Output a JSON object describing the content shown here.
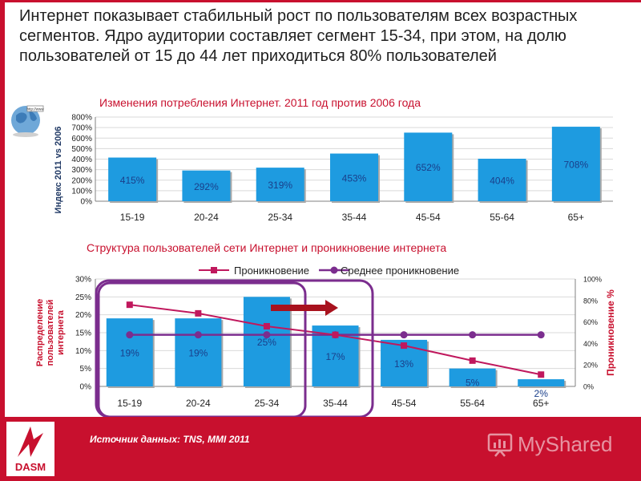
{
  "slide": {
    "title": "Интернет показывает стабильный рост по пользователям всех возрастных сегментов. Ядро аудитории составляет сегмент 15-34, при этом, на долю пользователей от 15 до 44 лет приходиться 80% пользователей",
    "source": "Источник данных: TNS,  MMI 2011",
    "logo_text": "DASM",
    "watermark": "MyShared"
  },
  "colors": {
    "accent": "#c8102e",
    "bar": "#1e9be0",
    "bar_label": "#1a3f8a",
    "penetration": "#c0185d",
    "avg_penetration": "#7b2d8e",
    "highlight_box": "#7b2d8e",
    "arrow": "#a8121e"
  },
  "chart_data": [
    {
      "type": "bar",
      "title": "Изменения потребления Интернет. 2011 год против 2006 года",
      "ylabel": "Индекс 2011 vs 2006",
      "categories": [
        "15-19",
        "20-24",
        "25-34",
        "35-44",
        "45-54",
        "55-64",
        "65+"
      ],
      "values": [
        415,
        292,
        319,
        453,
        652,
        404,
        708
      ],
      "value_labels": [
        "415%",
        "292%",
        "319%",
        "453%",
        "652%",
        "404%",
        "708%"
      ],
      "ylim": [
        0,
        800
      ],
      "yticks": [
        "0%",
        "100%",
        "200%",
        "300%",
        "400%",
        "500%",
        "600%",
        "700%",
        "800%"
      ],
      "grid": true
    },
    {
      "type": "bar",
      "title": "Структура пользователей сети Интернет и проникновение интернета",
      "ylabel": "Распределение пользователей интернета",
      "y2label": "Проникновение %",
      "categories": [
        "15-19",
        "20-24",
        "25-34",
        "35-44",
        "45-54",
        "55-64",
        "65+"
      ],
      "values": [
        19,
        19,
        25,
        17,
        13,
        5,
        2
      ],
      "value_labels": [
        "19%",
        "19%",
        "25%",
        "17%",
        "13%",
        "5%",
        "2%"
      ],
      "ylim": [
        0,
        30
      ],
      "yticks": [
        "0%",
        "5%",
        "10%",
        "15%",
        "20%",
        "25%",
        "30%"
      ],
      "y2lim": [
        0,
        100
      ],
      "y2ticks": [
        "0%",
        "20%",
        "40%",
        "60%",
        "80%",
        "100%"
      ],
      "series": [
        {
          "name": "Проникновение",
          "type": "line",
          "axis": "right",
          "values": [
            76,
            68,
            56,
            48,
            38,
            24,
            11
          ]
        },
        {
          "name": "Среднее проникновение",
          "type": "line",
          "axis": "right",
          "values": [
            48,
            48,
            48,
            48,
            48,
            48,
            48
          ]
        }
      ],
      "legend": "top"
    }
  ]
}
